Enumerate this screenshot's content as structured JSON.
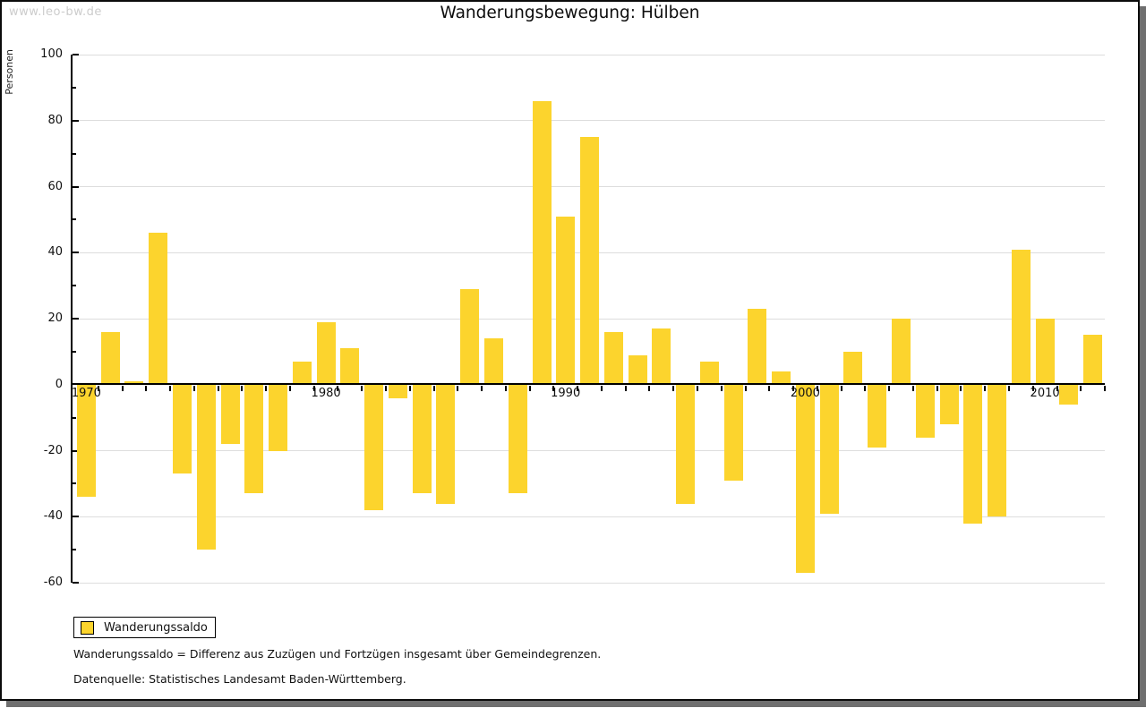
{
  "watermark": "www.leo-bw.de",
  "title": "Wanderungsbewegung: Hülben",
  "y_axis_label": "Personen",
  "legend": {
    "label": "Wanderungssaldo"
  },
  "footnotes": {
    "definition": "Wanderungssaldo = Differenz aus Zuzügen und Fortzügen insgesamt über Gemeindegrenzen.",
    "source": "Datenquelle: Statistisches Landesamt Baden-Württemberg."
  },
  "colors": {
    "bar": "#FCD42D",
    "grid": "#DDDDDD",
    "axis": "#000000",
    "watermark": "#CCCCCC",
    "frame_shadow": "#6F6F6F"
  },
  "chart_data": {
    "type": "bar",
    "title": "Wanderungsbewegung: Hülben",
    "xlabel": "",
    "ylabel": "Personen",
    "series_name": "Wanderungssaldo",
    "x": [
      1970,
      1971,
      1972,
      1973,
      1974,
      1975,
      1976,
      1977,
      1978,
      1979,
      1980,
      1981,
      1982,
      1983,
      1984,
      1985,
      1986,
      1987,
      1988,
      1989,
      1990,
      1991,
      1992,
      1993,
      1994,
      1995,
      1996,
      1997,
      1998,
      1999,
      2000,
      2001,
      2002,
      2003,
      2004,
      2005,
      2006,
      2007,
      2008,
      2009,
      2010,
      2011,
      2012
    ],
    "values": [
      -34,
      16,
      1,
      46,
      -27,
      -50,
      -18,
      -33,
      -20,
      7,
      19,
      11,
      -38,
      -4,
      -33,
      -36,
      29,
      14,
      -33,
      86,
      51,
      75,
      16,
      9,
      17,
      -36,
      7,
      -29,
      23,
      4,
      -57,
      -39,
      10,
      -19,
      20,
      -16,
      -12,
      -42,
      -40,
      41,
      20,
      -6,
      15
    ],
    "ylim": [
      -60,
      100
    ],
    "ytick_major_step": 20,
    "ytick_minor_step": 10,
    "ytick_labels": [
      100,
      80,
      60,
      40,
      20,
      0,
      -20,
      -40,
      -60
    ],
    "xticks_labeled": [
      1970,
      1980,
      1990,
      2000,
      2010
    ],
    "grid": true,
    "legend_position": "bottom-left"
  }
}
